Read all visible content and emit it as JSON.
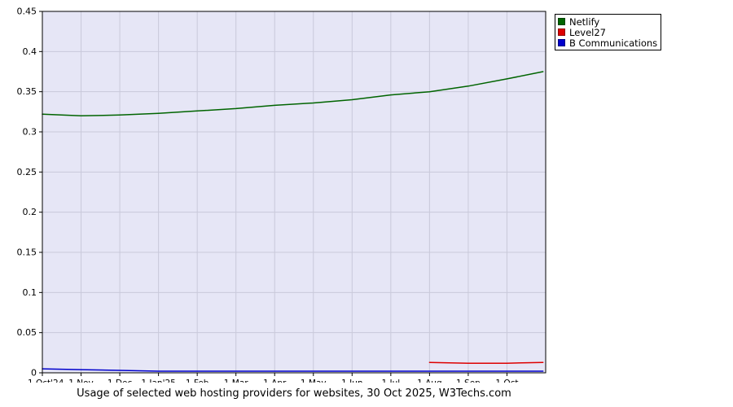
{
  "title": "Usage of selected web hosting providers for websites, 30 Oct 2025, W3Techs.com",
  "legend": [
    {
      "label": "Netlify",
      "color": "#006400"
    },
    {
      "label": "Level27",
      "color": "#dd0000"
    },
    {
      "label": "B Communications",
      "color": "#0000cc"
    }
  ],
  "colors": {
    "plot_background": "#e6e6f6",
    "grid": "#c9c9da",
    "axis": "#000000",
    "page_background": "#ffffff"
  },
  "chart_data": {
    "type": "line",
    "title": "Usage of selected web hosting providers for websites, 30 Oct 2025, W3Techs.com",
    "xlabel": "",
    "ylabel": "",
    "xlim": [
      0,
      13
    ],
    "ylim": [
      0,
      0.45
    ],
    "grid": true,
    "legend_position": "top-right-outside",
    "xtick_values": [
      0,
      1,
      2,
      3,
      4,
      5,
      6,
      7,
      8,
      9,
      10,
      11,
      12
    ],
    "xtick_labels": [
      "1 Oct'24",
      "1 Nov",
      "1 Dec",
      "1 Jan'25",
      "1 Feb",
      "1 Mar",
      "1 Apr",
      "1 May",
      "1 Jun",
      "1 Jul",
      "1 Aug",
      "1 Sep",
      "1 Oct"
    ],
    "ytick_values": [
      0,
      0.05,
      0.1,
      0.15,
      0.2,
      0.25,
      0.3,
      0.35,
      0.4,
      0.45
    ],
    "ytick_labels": [
      "0",
      "0.05",
      "0.1",
      "0.15",
      "0.2",
      "0.25",
      "0.3",
      "0.35",
      "0.4",
      "0.45"
    ],
    "series": [
      {
        "name": "Netlify",
        "color": "#006400",
        "x": [
          0,
          1,
          2,
          3,
          4,
          5,
          6,
          7,
          8,
          9,
          10,
          11,
          12,
          12.93
        ],
        "values": [
          0.322,
          0.32,
          0.321,
          0.323,
          0.326,
          0.329,
          0.333,
          0.336,
          0.34,
          0.346,
          0.35,
          0.357,
          0.366,
          0.375
        ]
      },
      {
        "name": "Level27",
        "color": "#dd0000",
        "x": [
          10,
          11,
          12,
          12.93
        ],
        "values": [
          0.013,
          0.012,
          0.012,
          0.013
        ]
      },
      {
        "name": "B Communications",
        "color": "#0000cc",
        "x": [
          0,
          1,
          2,
          3,
          4,
          5,
          6,
          7,
          8,
          9,
          10,
          11,
          12,
          12.93
        ],
        "values": [
          0.005,
          0.004,
          0.003,
          0.002,
          0.002,
          0.002,
          0.002,
          0.002,
          0.002,
          0.002,
          0.002,
          0.002,
          0.002,
          0.002
        ]
      }
    ]
  }
}
